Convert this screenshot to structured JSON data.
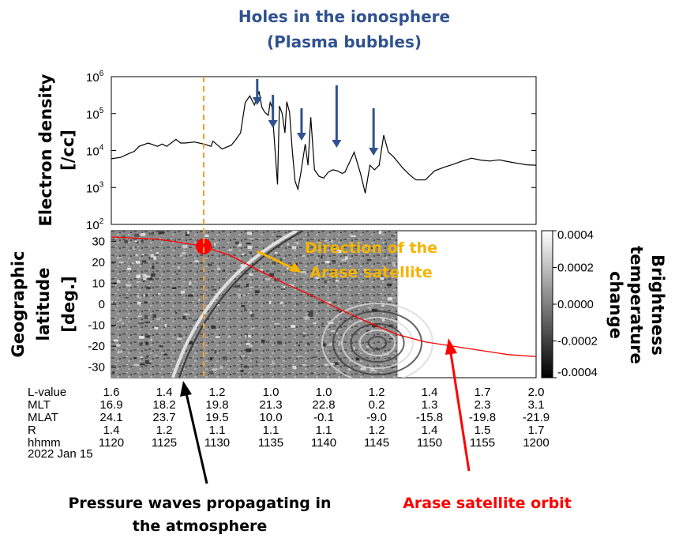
{
  "title_lines": [
    "Holes in the ionosphere",
    "(Plasma bubbles)"
  ],
  "colors": {
    "title": "#2f528f",
    "bubble_arrows": "#2f528f",
    "orbit": "#ff0000",
    "event_marker": "#f0a030",
    "direction_text": "#f5b400",
    "pressure_arrow": "#000000"
  },
  "chart_data": [
    {
      "type": "line",
      "ylabel_lines": [
        "Electron density",
        "[/cc]"
      ],
      "yscale": "log",
      "ylim": [
        100,
        1000000
      ],
      "y_ticks": [
        {
          "base": "10",
          "exp": "2"
        },
        {
          "base": "10",
          "exp": "3"
        },
        {
          "base": "10",
          "exp": "4"
        },
        {
          "base": "10",
          "exp": "5"
        },
        {
          "base": "10",
          "exp": "6"
        }
      ],
      "xlim_minutes": [
        0,
        46
      ],
      "series": [
        {
          "x": [
            0,
            1,
            2,
            2.5,
            3,
            4,
            5,
            5.5,
            6,
            7,
            7.5,
            8,
            9,
            10,
            10.4,
            10.8,
            11,
            12,
            13,
            13.5,
            14,
            14.5,
            15,
            15.5,
            16,
            16.3,
            16.6,
            17,
            17.2,
            17.4,
            18,
            18.2,
            18.5,
            18.8,
            19,
            19.3,
            19.6,
            19.9,
            20.2,
            20.5,
            21,
            21.3,
            21.6,
            22,
            22.5,
            23,
            23.5,
            24,
            24.5,
            25,
            25.3,
            25.8,
            26.3,
            27,
            27.5,
            28,
            28.5,
            29,
            29.5,
            30,
            30.5,
            31,
            31.5,
            32,
            32.5,
            33,
            34,
            35,
            36,
            37,
            38,
            39,
            40,
            41,
            42,
            43,
            44,
            45,
            46
          ],
          "values": [
            6000,
            6500,
            8500,
            9500,
            13000,
            16000,
            13000,
            15000,
            13000,
            20000,
            16000,
            16000,
            17000,
            15000,
            14000,
            13000,
            18000,
            11000,
            14000,
            20000,
            30000,
            200000,
            300000,
            170000,
            400000,
            150000,
            110000,
            90000,
            200000,
            150000,
            1200,
            160000,
            100000,
            30000,
            210000,
            110000,
            10000,
            1500,
            900,
            2300,
            15000,
            4000,
            80000,
            3000,
            2000,
            1800,
            2600,
            3000,
            2800,
            2400,
            2600,
            4800,
            9000,
            2300,
            700,
            4000,
            3000,
            4000,
            26000,
            9000,
            7000,
            5000,
            3500,
            2600,
            2000,
            1600,
            1600,
            2800,
            3500,
            4200,
            5200,
            6200,
            5500,
            5200,
            5600,
            5000,
            4500,
            4100,
            4000
          ]
        }
      ],
      "bubble_arrow_x_minutes": [
        15.8,
        17.5,
        20.6,
        24.4,
        28.4
      ],
      "event_marker_x_minutes": 10
    },
    {
      "type": "heatmap",
      "ylabel_lines": [
        "Geographic",
        "latitude",
        "[deg.]"
      ],
      "ylim": [
        -35,
        35
      ],
      "y_ticks": [
        "30",
        "20",
        "10",
        "0",
        "-10",
        "-20",
        "-30"
      ],
      "y_tick_values": [
        30,
        20,
        10,
        0,
        -10,
        -20,
        -30
      ],
      "colorbar_label_lines": [
        "Brightness",
        "temperature",
        "change"
      ],
      "colorbar_ticks": [
        "0.0004",
        "0.0002",
        "0.0000",
        "-0.0002",
        "-0.0004"
      ],
      "colorbar_tick_values": [
        0.0004,
        0.0002,
        0,
        -0.0002,
        -0.0004
      ],
      "data_extent_minutes": [
        0,
        31
      ],
      "orbit": {
        "x": [
          0,
          5,
          8,
          10,
          13,
          16,
          19,
          22,
          25,
          28,
          31,
          34,
          37,
          40,
          43,
          46
        ],
        "y": [
          32,
          31,
          29,
          27.5,
          23,
          16,
          9.5,
          3.5,
          -3,
          -9,
          -14.5,
          -18,
          -20,
          -22,
          -24,
          -25
        ]
      },
      "arase_marker": {
        "x_minutes": 10,
        "lat": 27.5
      }
    }
  ],
  "ephemeris": {
    "rows": [
      {
        "label": "L-value",
        "values": [
          "1.6",
          "1.4",
          "1.2",
          "1.0",
          "1.0",
          "1.2",
          "1.4",
          "1.7",
          "2.0"
        ]
      },
      {
        "label": "MLT",
        "values": [
          "16.9",
          "18.2",
          "19.8",
          "21.3",
          "22.8",
          "0.2",
          "1.3",
          "2.3",
          "3.1"
        ]
      },
      {
        "label": "MLAT",
        "values": [
          "24.1",
          "23.7",
          "19.5",
          "10.0",
          "-0.1",
          "-9.0",
          "-15.8",
          "-19.8",
          "-21.9"
        ]
      },
      {
        "label": "R",
        "values": [
          "1.4",
          "1.2",
          "1.1",
          "1.1",
          "1.1",
          "1.2",
          "1.4",
          "1.5",
          "1.7"
        ]
      },
      {
        "label": "hhmm",
        "values": [
          "1120",
          "1125",
          "1130",
          "1135",
          "1140",
          "1145",
          "1150",
          "1155",
          "1200"
        ]
      }
    ],
    "date": "2022 Jan 15"
  },
  "annotations": {
    "direction_lines": [
      "Direction of the",
      "Arase satellite"
    ],
    "pressure_lines": [
      "Pressure waves propagating in",
      "the atmosphere"
    ],
    "orbit_label": "Arase satellite orbit"
  }
}
